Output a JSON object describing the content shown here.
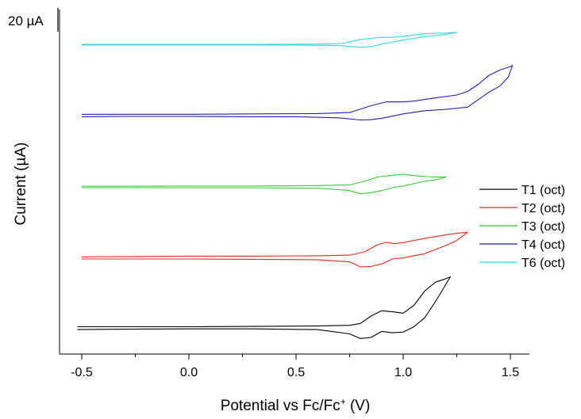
{
  "chart_data": {
    "type": "line",
    "title": "",
    "xlabel": "Potential vs Fc/Fc",
    "xlabel_sup": "+",
    "xlabel_unit": " (V)",
    "ylabel": "Current (µA)",
    "scale_bar_label": "20 µA",
    "xlim": [
      -0.6,
      1.6
    ],
    "xticks": [
      -0.5,
      0.0,
      0.5,
      1.0,
      1.5
    ],
    "xtick_labels": [
      "-0.5",
      "0.0",
      "0.5",
      "1.0",
      "1.5"
    ],
    "y_ticks_shown": false,
    "grid": false,
    "legend_position": "right",
    "series": [
      {
        "name": "T1 (oct)",
        "color": "#000000",
        "offset": 0,
        "forward": [
          [
            -0.52,
            1.0
          ],
          [
            -0.3,
            1.0
          ],
          [
            0.0,
            1.0
          ],
          [
            0.3,
            1.1
          ],
          [
            0.6,
            1.2
          ],
          [
            0.75,
            1.4
          ],
          [
            0.8,
            1.9
          ],
          [
            0.85,
            4.0
          ],
          [
            0.9,
            5.5
          ],
          [
            0.95,
            5.2
          ],
          [
            1.0,
            4.8
          ],
          [
            1.05,
            7.0
          ],
          [
            1.1,
            11.0
          ],
          [
            1.15,
            13.5
          ],
          [
            1.2,
            14.5
          ],
          [
            1.22,
            15.0
          ]
        ],
        "reverse": [
          [
            1.22,
            15.0
          ],
          [
            1.19,
            12.0
          ],
          [
            1.15,
            8.0
          ],
          [
            1.1,
            3.5
          ],
          [
            1.05,
            1.0
          ],
          [
            1.0,
            -0.5
          ],
          [
            0.95,
            -0.7
          ],
          [
            0.9,
            -0.3
          ],
          [
            0.85,
            -2.0
          ],
          [
            0.8,
            -2.3
          ],
          [
            0.75,
            -1.0
          ],
          [
            0.6,
            0.2
          ],
          [
            0.3,
            0.4
          ],
          [
            0.0,
            0.4
          ],
          [
            -0.3,
            0.3
          ],
          [
            -0.52,
            0.2
          ]
        ]
      },
      {
        "name": "T2 (oct)",
        "color": "#e8261c",
        "offset": 20,
        "forward": [
          [
            -0.5,
            0.6
          ],
          [
            -0.3,
            0.7
          ],
          [
            0.0,
            0.8
          ],
          [
            0.3,
            0.8
          ],
          [
            0.6,
            0.9
          ],
          [
            0.75,
            1.1
          ],
          [
            0.82,
            2.0
          ],
          [
            0.88,
            4.0
          ],
          [
            0.92,
            4.7
          ],
          [
            0.96,
            4.3
          ],
          [
            1.0,
            4.6
          ],
          [
            1.1,
            5.8
          ],
          [
            1.2,
            6.8
          ],
          [
            1.25,
            7.2
          ],
          [
            1.3,
            7.5
          ]
        ],
        "reverse": [
          [
            1.3,
            7.5
          ],
          [
            1.25,
            5.2
          ],
          [
            1.2,
            3.8
          ],
          [
            1.1,
            1.5
          ],
          [
            1.0,
            0.3
          ],
          [
            0.95,
            0.0
          ],
          [
            0.9,
            -1.4
          ],
          [
            0.85,
            -2.1
          ],
          [
            0.8,
            -2.2
          ],
          [
            0.75,
            -0.8
          ],
          [
            0.6,
            -0.2
          ],
          [
            0.3,
            -0.1
          ],
          [
            0.0,
            0.0
          ],
          [
            -0.3,
            0.0
          ],
          [
            -0.5,
            0.0
          ]
        ]
      },
      {
        "name": "T3 (oct)",
        "color": "#33cc33",
        "offset": 40,
        "forward": [
          [
            -0.5,
            0.4
          ],
          [
            -0.3,
            0.4
          ],
          [
            0.0,
            0.5
          ],
          [
            0.3,
            0.5
          ],
          [
            0.6,
            0.6
          ],
          [
            0.75,
            0.8
          ],
          [
            0.82,
            1.8
          ],
          [
            0.88,
            3.0
          ],
          [
            0.95,
            3.5
          ],
          [
            1.0,
            3.8
          ],
          [
            1.05,
            3.4
          ],
          [
            1.1,
            3.1
          ],
          [
            1.15,
            3.0
          ],
          [
            1.2,
            3.0
          ]
        ],
        "reverse": [
          [
            1.2,
            3.0
          ],
          [
            1.15,
            2.2
          ],
          [
            1.1,
            1.8
          ],
          [
            1.0,
            0.5
          ],
          [
            0.95,
            0.0
          ],
          [
            0.9,
            -0.8
          ],
          [
            0.85,
            -1.4
          ],
          [
            0.8,
            -1.7
          ],
          [
            0.75,
            -0.8
          ],
          [
            0.6,
            -0.1
          ],
          [
            0.3,
            0.0
          ],
          [
            0.0,
            0.0
          ],
          [
            -0.3,
            0.0
          ],
          [
            -0.5,
            0.0
          ]
        ]
      },
      {
        "name": "T4 (oct)",
        "color": "#1f1fa8",
        "offset": 60,
        "forward": [
          [
            -0.5,
            0.6
          ],
          [
            -0.3,
            0.6
          ],
          [
            0.0,
            0.6
          ],
          [
            0.3,
            0.7
          ],
          [
            0.6,
            0.8
          ],
          [
            0.75,
            1.1
          ],
          [
            0.85,
            3.0
          ],
          [
            0.92,
            4.1
          ],
          [
            1.0,
            4.1
          ],
          [
            1.05,
            4.3
          ],
          [
            1.15,
            5.2
          ],
          [
            1.25,
            6.0
          ],
          [
            1.3,
            7.0
          ],
          [
            1.35,
            9.0
          ],
          [
            1.4,
            11.5
          ],
          [
            1.45,
            13.0
          ],
          [
            1.5,
            14.0
          ],
          [
            1.51,
            14.3
          ]
        ],
        "reverse": [
          [
            1.51,
            14.3
          ],
          [
            1.49,
            11.0
          ],
          [
            1.45,
            8.5
          ],
          [
            1.4,
            6.8
          ],
          [
            1.3,
            2.6
          ],
          [
            1.2,
            2.0
          ],
          [
            1.1,
            1.6
          ],
          [
            1.0,
            0.7
          ],
          [
            0.9,
            -0.5
          ],
          [
            0.85,
            -0.9
          ],
          [
            0.8,
            -1.0
          ],
          [
            0.7,
            -0.4
          ],
          [
            0.5,
            -0.1
          ],
          [
            0.3,
            -0.1
          ],
          [
            0.0,
            0.0
          ],
          [
            -0.3,
            0.0
          ],
          [
            -0.5,
            -0.1
          ]
        ]
      },
      {
        "name": "T6 (oct)",
        "color": "#33d9e0",
        "offset": 80,
        "forward": [
          [
            -0.5,
            0.2
          ],
          [
            -0.3,
            0.2
          ],
          [
            0.0,
            0.2
          ],
          [
            0.3,
            0.2
          ],
          [
            0.6,
            0.3
          ],
          [
            0.72,
            0.5
          ],
          [
            0.8,
            1.6
          ],
          [
            0.88,
            2.1
          ],
          [
            0.95,
            2.2
          ],
          [
            1.0,
            2.5
          ],
          [
            1.1,
            3.2
          ],
          [
            1.2,
            3.4
          ],
          [
            1.25,
            3.6
          ]
        ],
        "reverse": [
          [
            1.25,
            3.6
          ],
          [
            1.2,
            3.0
          ],
          [
            1.1,
            2.4
          ],
          [
            1.0,
            1.4
          ],
          [
            0.9,
            0.3
          ],
          [
            0.85,
            -0.4
          ],
          [
            0.8,
            -0.6
          ],
          [
            0.7,
            -0.1
          ],
          [
            0.5,
            0.0
          ],
          [
            0.0,
            0.0
          ],
          [
            -0.5,
            0.0
          ]
        ]
      }
    ]
  }
}
